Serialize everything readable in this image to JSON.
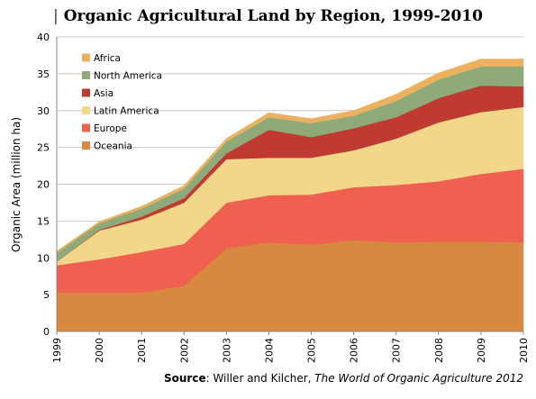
{
  "title": "Organic Agricultural Land by Region, 1999-2010",
  "title_separator": "|",
  "source": {
    "label": "Source",
    "authors": "Willer and Kilcher, ",
    "publication": "The World of Organic Agriculture 2012"
  },
  "chart_data": {
    "type": "area",
    "stacked": true,
    "title": "Organic Agricultural Land by Region, 1999-2010",
    "xlabel": "",
    "ylabel": "Organic Area (million ha)",
    "ylim": [
      0,
      40
    ],
    "yticks": [
      0,
      5,
      10,
      15,
      20,
      25,
      30,
      35,
      40
    ],
    "grid": true,
    "legend_position": "top-left",
    "categories": [
      "1999",
      "2000",
      "2001",
      "2002",
      "2003",
      "2004",
      "2005",
      "2006",
      "2007",
      "2008",
      "2009",
      "2010"
    ],
    "series": [
      {
        "name": "Oceania",
        "color": "#D9893F",
        "values": [
          5.3,
          5.3,
          5.3,
          6.2,
          11.3,
          12.1,
          11.8,
          12.4,
          12.1,
          12.2,
          12.2,
          12.1
        ]
      },
      {
        "name": "Europe",
        "color": "#F06050",
        "values": [
          3.7,
          4.5,
          5.5,
          5.7,
          6.2,
          6.4,
          6.8,
          7.2,
          7.8,
          8.2,
          9.2,
          10.0
        ]
      },
      {
        "name": "Latin America",
        "color": "#F2D68A",
        "values": [
          0.5,
          3.9,
          4.4,
          5.6,
          5.9,
          5.1,
          5.0,
          5.0,
          6.3,
          8.0,
          8.4,
          8.4
        ]
      },
      {
        "name": "Asia",
        "color": "#BE3A32",
        "values": [
          0.0,
          0.1,
          0.4,
          0.6,
          0.8,
          3.8,
          2.8,
          3.0,
          2.9,
          3.3,
          3.6,
          2.8
        ]
      },
      {
        "name": "North America",
        "color": "#8DAA78",
        "values": [
          1.2,
          0.9,
          1.1,
          1.3,
          1.6,
          1.7,
          1.9,
          1.7,
          2.2,
          2.5,
          2.6,
          2.7
        ]
      },
      {
        "name": "Africa",
        "color": "#EBB060",
        "values": [
          0.2,
          0.2,
          0.3,
          0.4,
          0.4,
          0.6,
          0.6,
          0.7,
          0.9,
          0.9,
          1.0,
          1.0
        ]
      }
    ]
  }
}
